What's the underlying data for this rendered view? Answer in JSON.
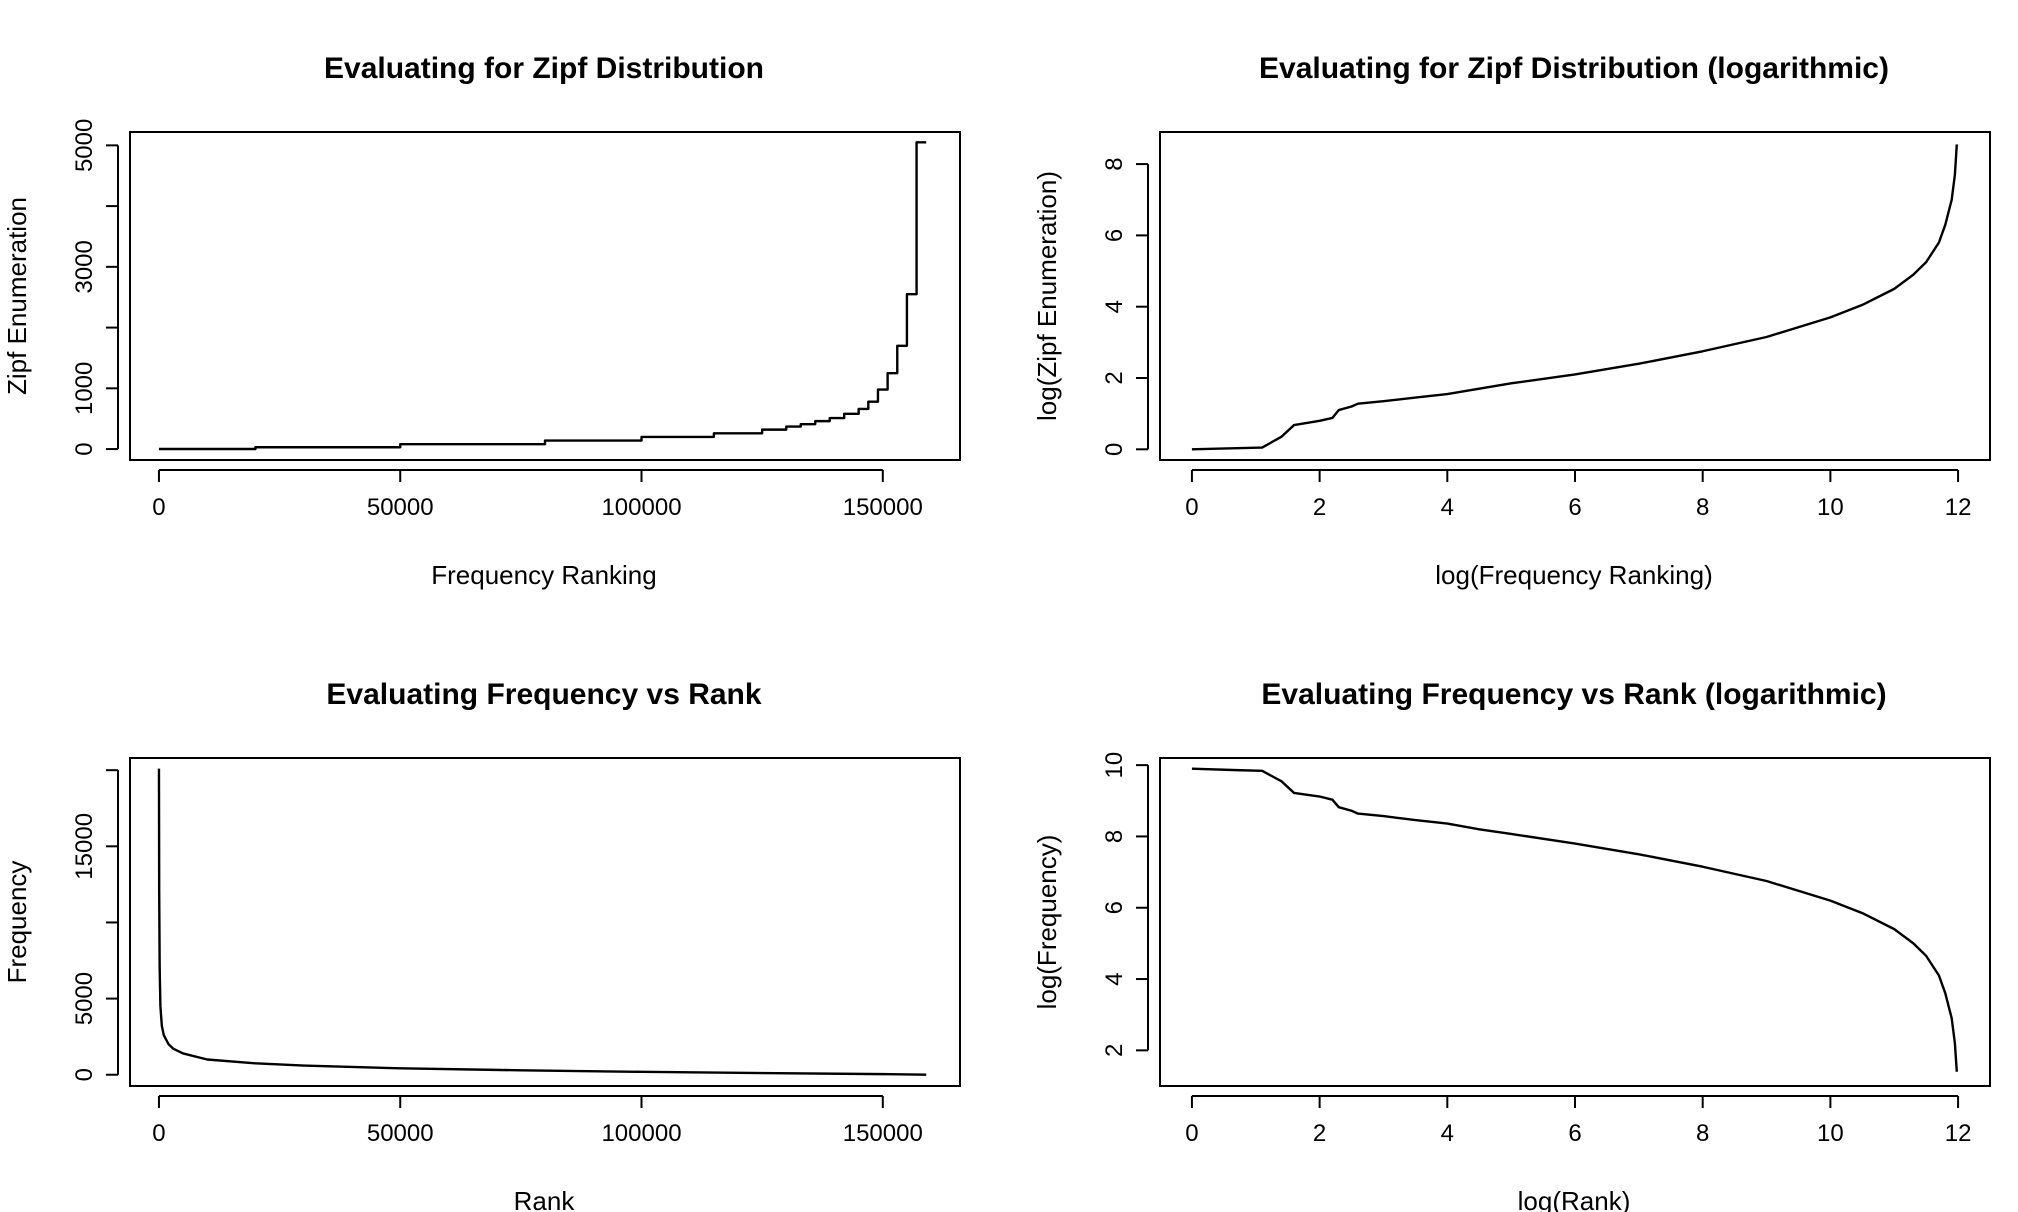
{
  "chart_data": [
    {
      "id": "zipf-linear",
      "type": "line",
      "step": true,
      "title": "Evaluating for Zipf Distribution",
      "xlabel": "Frequency Ranking",
      "ylabel": "Zipf Enumeration",
      "xlim": [
        -6000,
        166000
      ],
      "ylim": [
        -180,
        5220
      ],
      "xticks": [
        0,
        50000,
        100000,
        150000
      ],
      "xtick_labels": [
        "0",
        "50000",
        "100000",
        "150000"
      ],
      "yticks": [
        0,
        1000,
        2000,
        3000,
        4000,
        5000
      ],
      "ytick_labels": [
        "0",
        "1000",
        "",
        "3000",
        "",
        "5000"
      ],
      "grid": false,
      "series": [
        {
          "x": [
            0,
            20000,
            50000,
            80000,
            100000,
            115000,
            125000,
            130000,
            133000,
            136000,
            139000,
            142000,
            145000,
            147000,
            149000,
            151000,
            153000,
            155000,
            157000,
            159000
          ],
          "y": [
            1,
            30,
            80,
            140,
            200,
            260,
            320,
            370,
            410,
            460,
            510,
            580,
            660,
            780,
            980,
            1250,
            1700,
            2550,
            5050,
            5050
          ]
        }
      ]
    },
    {
      "id": "zipf-log",
      "type": "line",
      "title": "Evaluating for Zipf Distribution (logarithmic)",
      "xlabel": "log(Frequency Ranking)",
      "ylabel": "log(Zipf Enumeration)",
      "xlim": [
        -0.5,
        12.5
      ],
      "ylim": [
        -0.3,
        8.9
      ],
      "xticks": [
        0,
        2,
        4,
        6,
        8,
        10,
        12
      ],
      "xtick_labels": [
        "0",
        "2",
        "4",
        "6",
        "8",
        "10",
        "12"
      ],
      "yticks": [
        0,
        2,
        4,
        6,
        8
      ],
      "ytick_labels": [
        "0",
        "2",
        "4",
        "6",
        "8"
      ],
      "grid": false,
      "series": [
        {
          "x": [
            0,
            0.7,
            1.1,
            1.4,
            1.6,
            2.0,
            2.2,
            2.3,
            2.5,
            2.6,
            3.0,
            3.5,
            4.0,
            4.5,
            5.0,
            6.0,
            7.0,
            8.0,
            9.0,
            10.0,
            10.5,
            11.0,
            11.3,
            11.5,
            11.7,
            11.8,
            11.9,
            11.95,
            11.98
          ],
          "y": [
            0,
            0.03,
            0.05,
            0.35,
            0.68,
            0.8,
            0.88,
            1.1,
            1.2,
            1.28,
            1.35,
            1.45,
            1.55,
            1.7,
            1.85,
            2.1,
            2.4,
            2.75,
            3.15,
            3.7,
            4.05,
            4.5,
            4.9,
            5.25,
            5.8,
            6.3,
            7.0,
            7.7,
            8.55
          ]
        }
      ]
    },
    {
      "id": "freq-linear",
      "type": "line",
      "title": "Evaluating Frequency vs Rank",
      "xlabel": "Rank",
      "ylabel": "Frequency",
      "xlim": [
        -6000,
        166000
      ],
      "ylim": [
        -740,
        20800
      ],
      "xticks": [
        0,
        50000,
        100000,
        150000
      ],
      "xtick_labels": [
        "0",
        "50000",
        "100000",
        "150000"
      ],
      "yticks": [
        0,
        5000,
        10000,
        15000,
        20000
      ],
      "ytick_labels": [
        "0",
        "5000",
        "",
        "15000",
        ""
      ],
      "grid": false,
      "series": [
        {
          "x": [
            0,
            50,
            150,
            300,
            600,
            1000,
            2000,
            3000,
            5000,
            10000,
            20000,
            30000,
            50000,
            75000,
            100000,
            125000,
            150000,
            159000
          ],
          "y": [
            20100,
            12000,
            7000,
            4500,
            3200,
            2600,
            2000,
            1700,
            1400,
            1000,
            750,
            600,
            420,
            290,
            190,
            110,
            40,
            5
          ]
        }
      ]
    },
    {
      "id": "freq-log",
      "type": "line",
      "title": "Evaluating Frequency vs Rank (logarithmic)",
      "xlabel": "log(Rank)",
      "ylabel": "log(Frequency)",
      "xlim": [
        -0.5,
        12.5
      ],
      "ylim": [
        1.0,
        10.2
      ],
      "xticks": [
        0,
        2,
        4,
        6,
        8,
        10,
        12
      ],
      "xtick_labels": [
        "0",
        "2",
        "4",
        "6",
        "8",
        "10",
        "12"
      ],
      "yticks": [
        2,
        4,
        6,
        8,
        10
      ],
      "ytick_labels": [
        "2",
        "4",
        "6",
        "8",
        "10"
      ],
      "grid": false,
      "series": [
        {
          "x": [
            0,
            0.7,
            1.1,
            1.4,
            1.6,
            2.0,
            2.2,
            2.3,
            2.5,
            2.6,
            3.0,
            3.5,
            4.0,
            4.5,
            5.0,
            6.0,
            7.0,
            8.0,
            9.0,
            10.0,
            10.5,
            11.0,
            11.3,
            11.5,
            11.7,
            11.8,
            11.9,
            11.95,
            11.98
          ],
          "y": [
            9.9,
            9.86,
            9.84,
            9.55,
            9.22,
            9.12,
            9.03,
            8.82,
            8.72,
            8.64,
            8.57,
            8.46,
            8.36,
            8.2,
            8.07,
            7.8,
            7.5,
            7.15,
            6.75,
            6.2,
            5.85,
            5.4,
            5.0,
            4.65,
            4.1,
            3.6,
            2.9,
            2.2,
            1.4
          ]
        }
      ]
    }
  ]
}
